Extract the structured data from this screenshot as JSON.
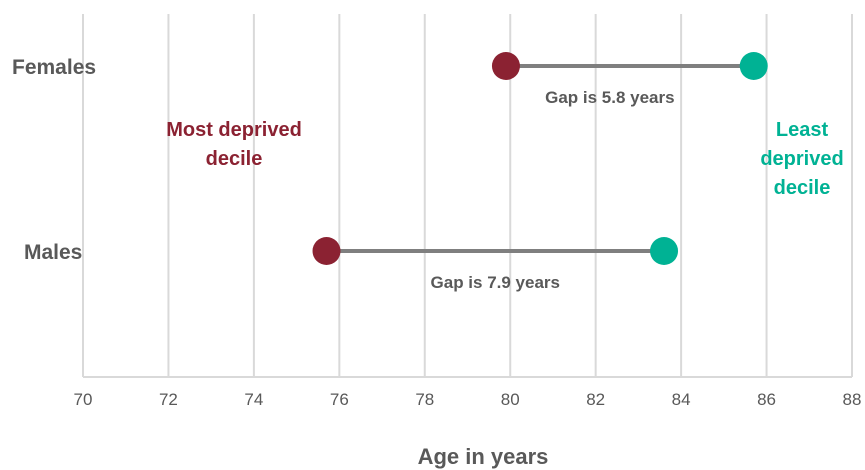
{
  "chart_data": {
    "type": "dumbbell",
    "xlabel": "Age in years",
    "xlim": [
      70,
      88
    ],
    "x_ticks": [
      70,
      72,
      74,
      76,
      78,
      80,
      82,
      84,
      86,
      88
    ],
    "grid": true,
    "categories": [
      "Females",
      "Males"
    ],
    "series": [
      {
        "name": "Most deprived decile",
        "color": "#8B2232",
        "values": [
          79.9,
          75.7
        ]
      },
      {
        "name": "Least deprived decile",
        "color": "#00B294",
        "values": [
          85.7,
          83.6
        ]
      }
    ],
    "gap_labels": [
      "Gap is 5.8 years",
      "Gap is 7.9 years"
    ],
    "annotations": {
      "most_deprived": [
        "Most deprived",
        "decile"
      ],
      "least_deprived": [
        "Least",
        "deprived",
        "decile"
      ]
    },
    "colors": {
      "connector": "#7F7F7F",
      "grid": "#D9D9D9",
      "text": "#595959"
    }
  }
}
